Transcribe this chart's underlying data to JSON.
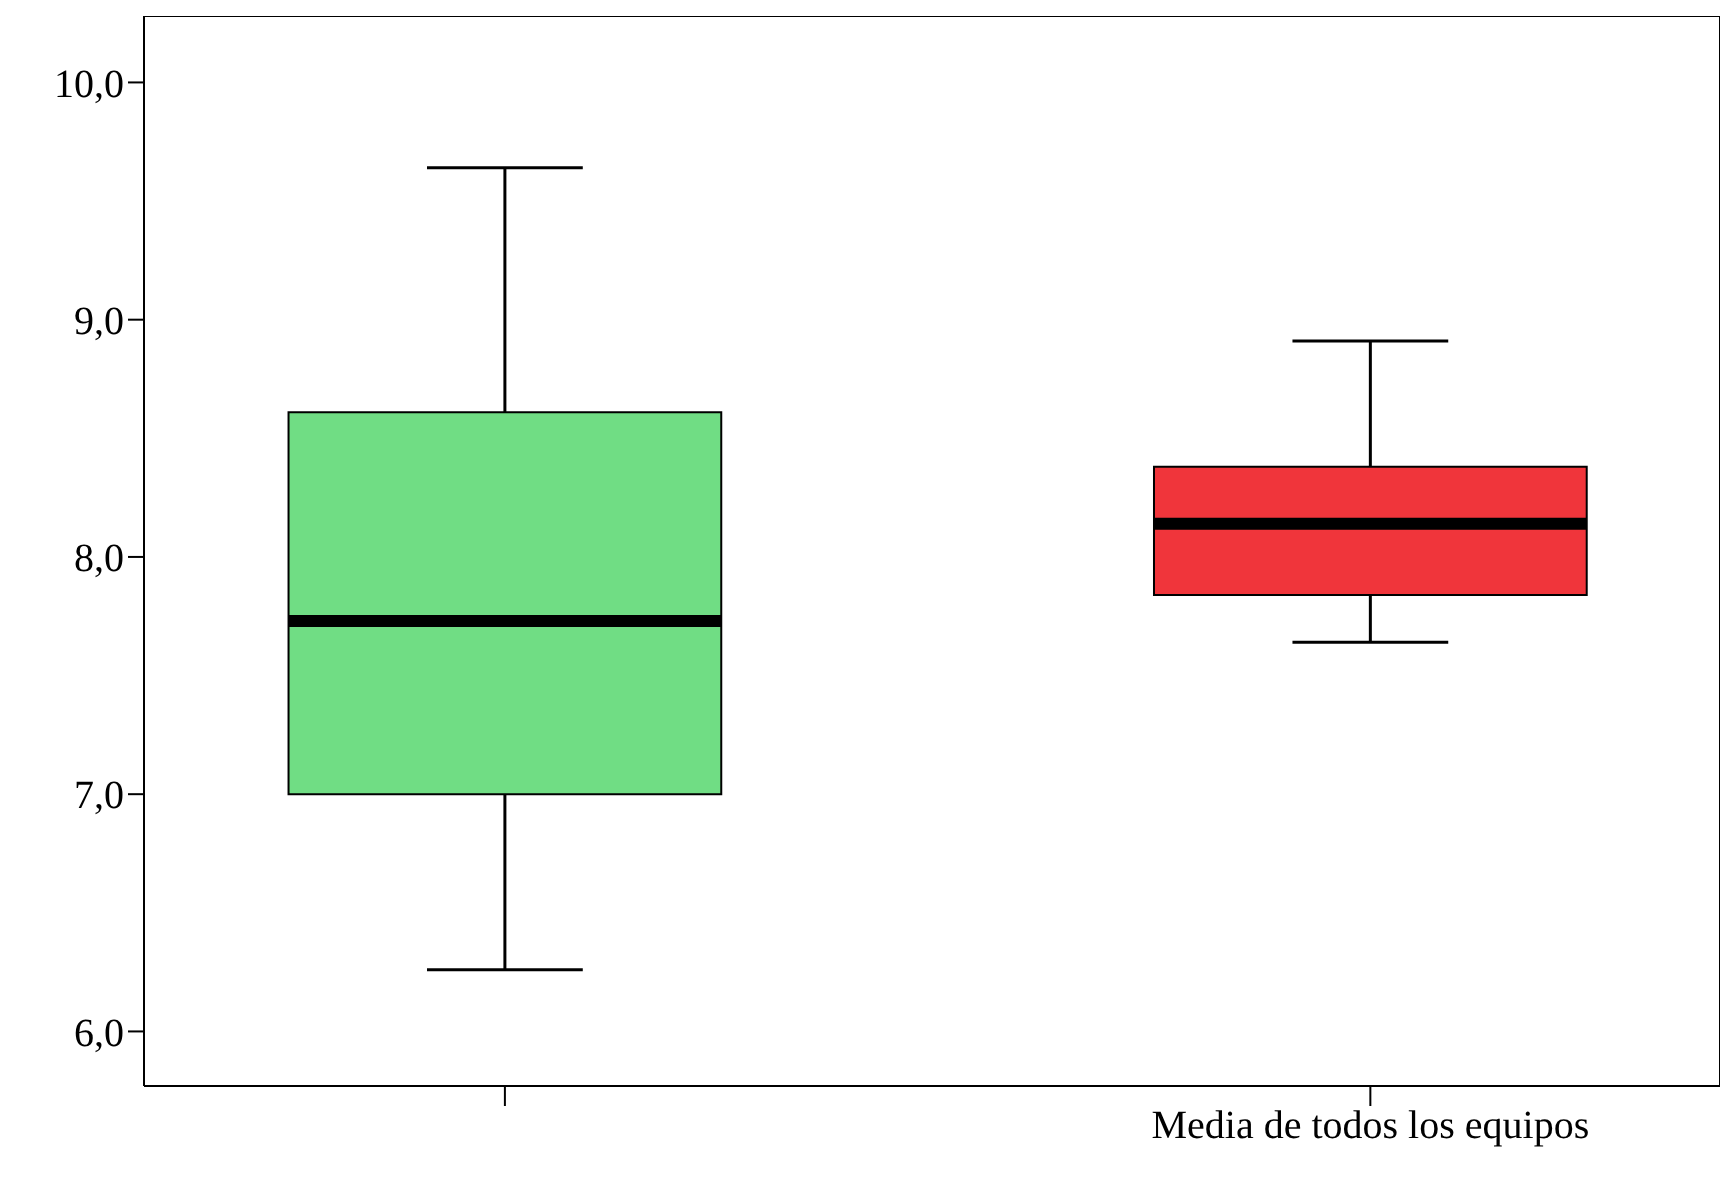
{
  "chart_data": {
    "type": "box",
    "categories": [
      null,
      "Media de todos los equipos"
    ],
    "ylim": [
      5.77,
      10.28
    ],
    "yticks": [
      {
        "value": 6,
        "label": "6,0"
      },
      {
        "value": 7,
        "label": "7,0"
      },
      {
        "value": 8,
        "label": "8,0"
      },
      {
        "value": 9,
        "label": "9,0"
      },
      {
        "value": 10,
        "label": "10,0"
      }
    ],
    "colors": [
      "#70dd84",
      "#f0353b"
    ],
    "boxes": [
      {
        "low": 6.26,
        "q1": 7.0,
        "median": 7.73,
        "q3": 8.61,
        "high": 9.64
      },
      {
        "low": 7.64,
        "q1": 7.84,
        "median": 8.14,
        "q3": 8.38,
        "high": 8.91
      }
    ]
  }
}
